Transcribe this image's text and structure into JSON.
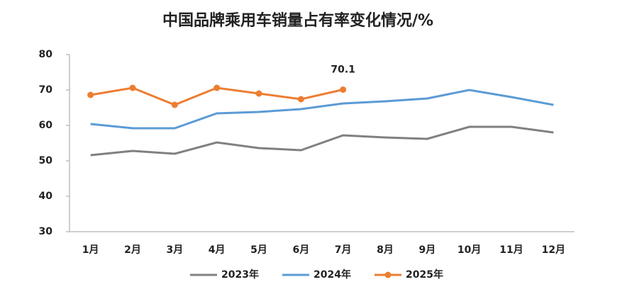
{
  "chart_data": {
    "type": "line",
    "title": "中国品牌乘用车销量占有率变化情况/%",
    "categories": [
      "1月",
      "2月",
      "3月",
      "4月",
      "5月",
      "6月",
      "7月",
      "8月",
      "9月",
      "10月",
      "11月",
      "12月"
    ],
    "series": [
      {
        "name": "2023年",
        "color": "#808080",
        "marker": false,
        "values": [
          51.6,
          52.8,
          52.0,
          55.2,
          53.6,
          53.0,
          57.2,
          56.6,
          56.2,
          59.6,
          59.6,
          58.0
        ]
      },
      {
        "name": "2024年",
        "color": "#5b9bd5",
        "marker": false,
        "values": [
          60.4,
          59.2,
          59.2,
          63.4,
          63.8,
          64.6,
          66.2,
          66.8,
          67.6,
          70.0,
          68.0,
          65.8
        ]
      },
      {
        "name": "2025年",
        "color": "#ed7d31",
        "marker": true,
        "values": [
          68.6,
          70.6,
          65.8,
          70.6,
          69.0,
          67.4,
          70.1,
          null,
          null,
          null,
          null,
          null
        ],
        "value_labels": [
          null,
          null,
          null,
          null,
          null,
          null,
          "70.1",
          null,
          null,
          null,
          null,
          null
        ]
      }
    ],
    "ylim": [
      30,
      80
    ],
    "yticks": [
      30,
      40,
      50,
      60,
      70,
      80
    ],
    "grid": false
  }
}
